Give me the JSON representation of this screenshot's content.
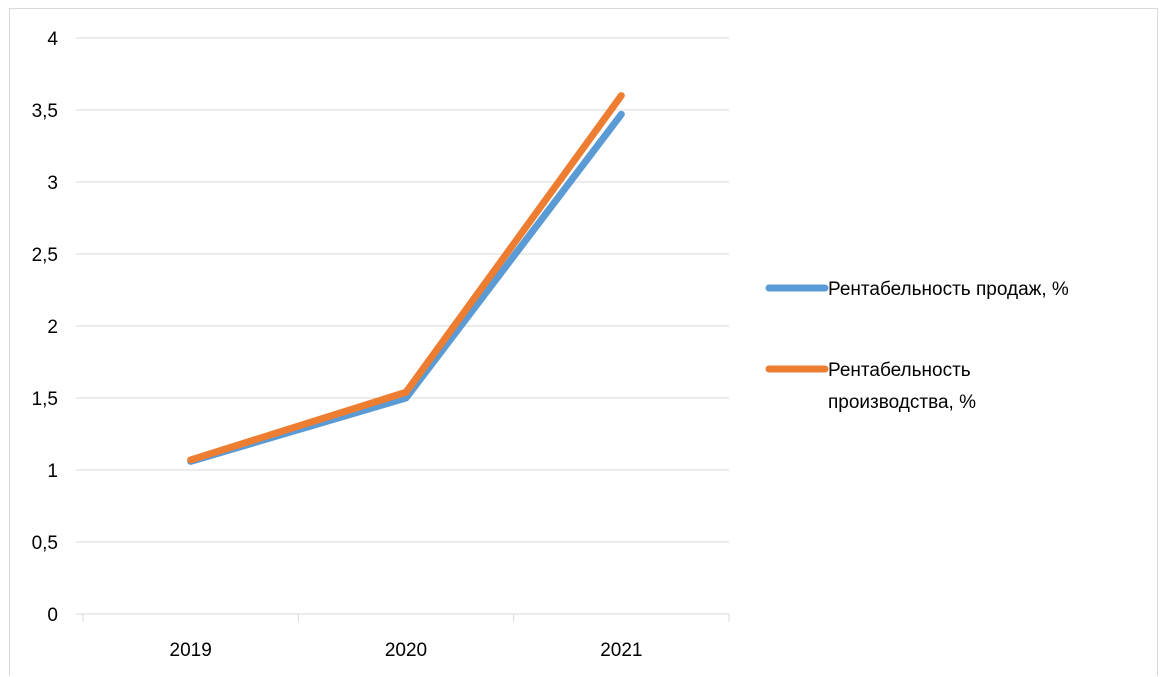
{
  "chart_data": {
    "type": "line",
    "categories": [
      "2019",
      "2020",
      "2021"
    ],
    "series": [
      {
        "name": "Рентабельность продаж, %",
        "name_lines": [
          "Рентабельность продаж, %"
        ],
        "values": [
          1.06,
          1.5,
          3.47
        ],
        "color": "#5B9BD5"
      },
      {
        "name": "Рентабельность производства, %",
        "name_lines": [
          "Рентабельность",
          "производства, %"
        ],
        "values": [
          1.07,
          1.54,
          3.6
        ],
        "color": "#ED7D31"
      }
    ],
    "ylim": [
      0,
      4
    ],
    "yticks": [
      0,
      0.5,
      1,
      1.5,
      2,
      2.5,
      3,
      3.5,
      4
    ],
    "ytick_labels": [
      "0",
      "0,5",
      "1",
      "1,5",
      "2",
      "2,5",
      "3",
      "3,5",
      "4"
    ],
    "gridlines": true,
    "gridline_color": "#d9d9d9",
    "legend_position": "right",
    "title": "",
    "xlabel": "",
    "ylabel": ""
  }
}
